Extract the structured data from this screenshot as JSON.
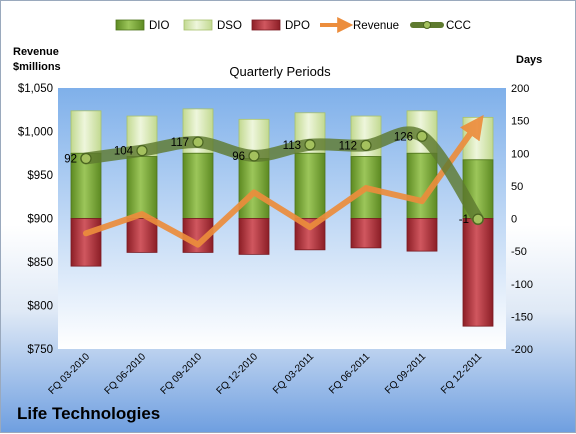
{
  "company": "Life Technologies",
  "chart_data": {
    "type": "bar",
    "title": "Quarterly Periods",
    "left_axis_label": [
      "Revenue",
      "$millions"
    ],
    "right_axis_label": "Days",
    "categories": [
      "FQ 03-2010",
      "FQ 06-2010",
      "FQ 09-2010",
      "FQ 12-2010",
      "FQ 03-2011",
      "FQ 06-2011",
      "FQ 09-2011",
      "FQ 12-2011"
    ],
    "left_axis": {
      "min": 750,
      "max": 1050,
      "step": 50,
      "ticks": [
        "$750",
        "$800",
        "$850",
        "$900",
        "$950",
        "$1,000",
        "$1,050"
      ]
    },
    "right_axis": {
      "min": -200,
      "max": 200,
      "step": 50,
      "ticks": [
        "-200",
        "-150",
        "-100",
        "-50",
        "0",
        "50",
        "100",
        "150",
        "200"
      ]
    },
    "legend": [
      "DIO",
      "DSO",
      "DPO",
      "Revenue",
      "CCC"
    ],
    "legend_position": "top",
    "colors": {
      "DIO": "#7aa537",
      "DSO": "#d7e8b0",
      "DPO": "#b2313a",
      "Revenue": "#ec8d3c",
      "CCC": "#5e7a2f"
    },
    "series": [
      {
        "name": "DIO",
        "axis": "right",
        "values": [
          100,
          95,
          100,
          92,
          100,
          95,
          100,
          90
        ]
      },
      {
        "name": "DSO",
        "axis": "right",
        "values": [
          65,
          62,
          68,
          60,
          62,
          62,
          65,
          65
        ]
      },
      {
        "name": "DPO",
        "axis": "right",
        "values": [
          -73,
          -52,
          -52,
          -55,
          -48,
          -45,
          -50,
          -165
        ]
      },
      {
        "name": "Revenue",
        "axis": "left",
        "values": [
          883,
          905,
          870,
          930,
          890,
          935,
          920,
          1010
        ]
      },
      {
        "name": "CCC",
        "axis": "right",
        "values": [
          92,
          104,
          117,
          96,
          113,
          112,
          126,
          -1
        ]
      }
    ],
    "ccc_labels": [
      "92",
      "104",
      "117",
      "96",
      "113",
      "112",
      "126",
      "-1"
    ]
  }
}
